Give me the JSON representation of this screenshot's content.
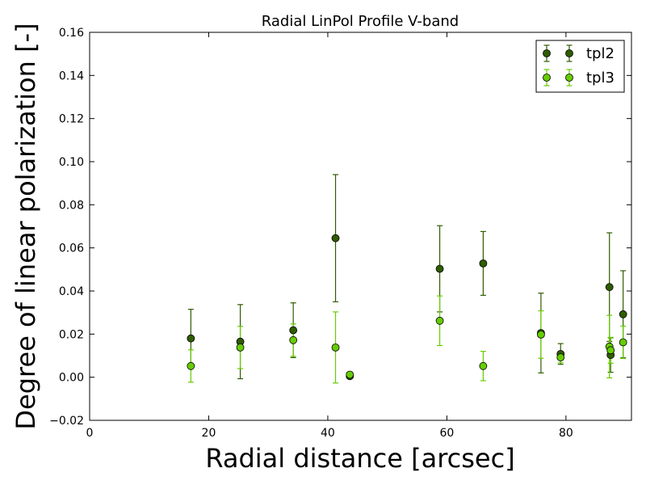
{
  "chart_data": {
    "type": "scatter",
    "title": "Radial LinPol Profile V-band",
    "xlabel": "Radial distance [arcsec]",
    "ylabel": "Degree of linear polarization [-]",
    "xlim": [
      0,
      91
    ],
    "ylim": [
      -0.02,
      0.16
    ],
    "xticks": [
      0,
      20,
      40,
      60,
      80
    ],
    "yticks": [
      -0.02,
      0.0,
      0.02,
      0.04,
      0.06,
      0.08,
      0.1,
      0.12,
      0.14,
      0.16
    ],
    "xtick_labels": [
      "0",
      "20",
      "40",
      "60",
      "80"
    ],
    "ytick_labels": [
      "−0.02",
      "0.00",
      "0.02",
      "0.04",
      "0.06",
      "0.08",
      "0.10",
      "0.12",
      "0.14",
      "0.16"
    ],
    "grid": false,
    "legend_position": "top-right",
    "series": [
      {
        "name": "tpl2",
        "color": "#2f5c00",
        "points": [
          {
            "x": 17.0,
            "y": 0.018,
            "err": 0.0135
          },
          {
            "x": 25.3,
            "y": 0.0165,
            "err": 0.0172
          },
          {
            "x": 34.2,
            "y": 0.0218,
            "err": 0.0127
          },
          {
            "x": 41.3,
            "y": 0.0645,
            "err": 0.0295
          },
          {
            "x": 43.7,
            "y": 0.0005,
            "err": 0.001
          },
          {
            "x": 58.8,
            "y": 0.0503,
            "err": 0.02
          },
          {
            "x": 66.1,
            "y": 0.0528,
            "err": 0.0148
          },
          {
            "x": 75.8,
            "y": 0.0205,
            "err": 0.0185
          },
          {
            "x": 79.1,
            "y": 0.0108,
            "err": 0.0048
          },
          {
            "x": 87.3,
            "y": 0.0418,
            "err": 0.0252
          },
          {
            "x": 87.5,
            "y": 0.0103,
            "err": 0.008
          },
          {
            "x": 89.6,
            "y": 0.0292,
            "err": 0.0202
          }
        ]
      },
      {
        "name": "tpl3",
        "color": "#66cc00",
        "points": [
          {
            "x": 17.0,
            "y": 0.0052,
            "err": 0.0075
          },
          {
            "x": 25.3,
            "y": 0.0138,
            "err": 0.0098
          },
          {
            "x": 34.2,
            "y": 0.0172,
            "err": 0.0075
          },
          {
            "x": 41.3,
            "y": 0.0138,
            "err": 0.0165
          },
          {
            "x": 43.7,
            "y": 0.0012,
            "err": 0.0012
          },
          {
            "x": 58.8,
            "y": 0.0262,
            "err": 0.0115
          },
          {
            "x": 66.1,
            "y": 0.0052,
            "err": 0.0068
          },
          {
            "x": 75.8,
            "y": 0.0198,
            "err": 0.011
          },
          {
            "x": 79.1,
            "y": 0.0092,
            "err": 0.0025
          },
          {
            "x": 87.3,
            "y": 0.0142,
            "err": 0.0145
          },
          {
            "x": 87.5,
            "y": 0.0125,
            "err": 0.006
          },
          {
            "x": 89.6,
            "y": 0.0162,
            "err": 0.0075
          }
        ]
      }
    ]
  }
}
